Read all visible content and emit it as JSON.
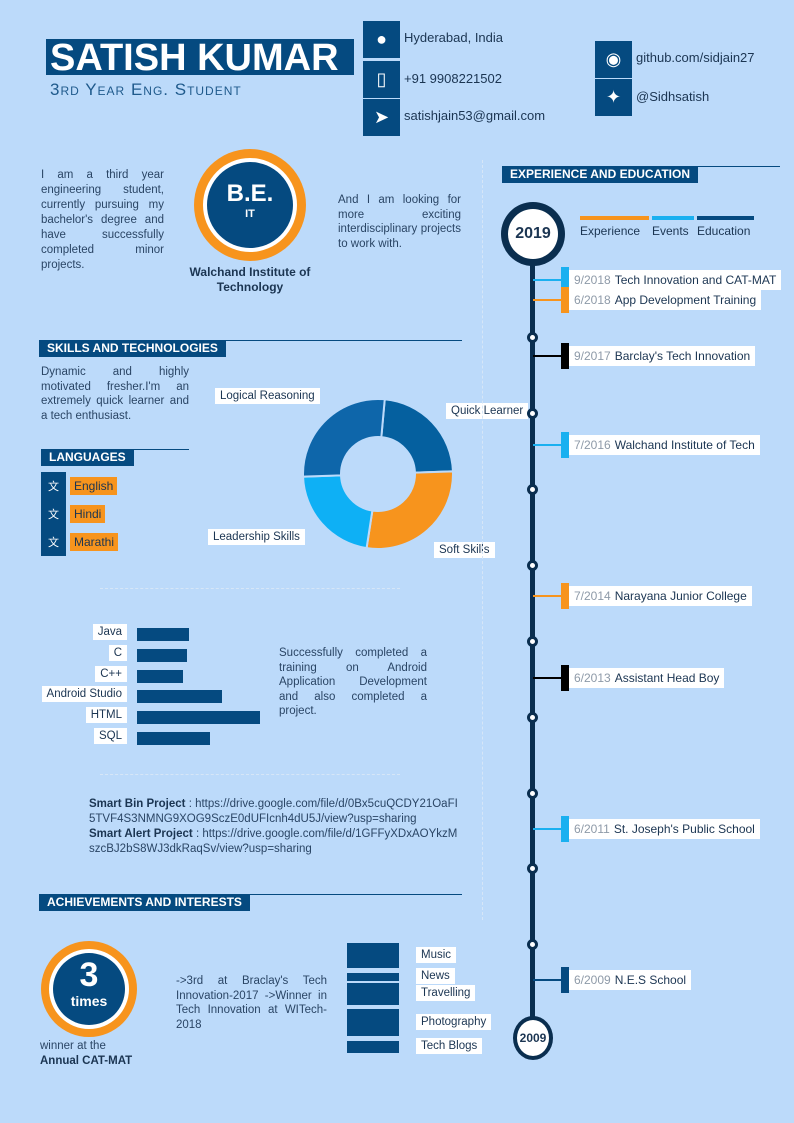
{
  "header": {
    "name": "SATISH KUMAR",
    "subtitle": "3rd Year Eng. Student"
  },
  "contact": [
    {
      "icon": "location-pin-icon",
      "text": "Hyderabad, India"
    },
    {
      "icon": "mobile-phone-icon",
      "text": "+91 9908221502"
    },
    {
      "icon": "paper-plane-icon",
      "text": "satishjain53@gmail.com"
    }
  ],
  "social": [
    {
      "icon": "github-icon",
      "text": "github.com/sidjain27"
    },
    {
      "icon": "twitter-icon",
      "text": "@Sidhsatish"
    }
  ],
  "intro": {
    "left": "I am a third year engineering student, currently pursuing my bachelor's degree and have successfully completed minor projects.",
    "right": "And I am looking for more exciting interdisciplinary projects to work with.",
    "degree": "B.E.",
    "branch": "IT",
    "college": "Walchand Institute of Technology"
  },
  "skills": {
    "title": "SKILLS AND TECHNOLOGIES",
    "summary": "Dynamic and highly motivated fresher.I'm an extremely quick learner and a tech enthusiast.",
    "training": "Successfully completed a training on Android Application Development and also completed a project."
  },
  "languages": {
    "title": "LANGUAGES",
    "items": [
      "English",
      "Hindi",
      "Marathi"
    ]
  },
  "chart_data": [
    {
      "type": "pie",
      "variant": "donut",
      "labels": [
        "Quick Learner",
        "Soft Skills",
        "Leadership Skills",
        "Logical Reasoning"
      ],
      "values": [
        23,
        28,
        22,
        27
      ],
      "colors": [
        "#05609f",
        "#f7941d",
        "#0eb0f5",
        "#0e66aa"
      ]
    },
    {
      "type": "bar",
      "orientation": "horizontal",
      "categories": [
        "Java",
        "C",
        "C++",
        "Android Studio",
        "HTML",
        "SQL"
      ],
      "values": [
        42,
        41,
        37,
        69,
        100,
        59
      ],
      "color": "#054a80"
    }
  ],
  "projects": [
    {
      "name": "Smart Bin Project",
      "link": " : https://drive.google.com/file/d/0Bx5cuQCDY21OaFI5TVF4S3NMNG9XOG9SczE0dUFIcnh4dU5J/view?usp=sharing"
    },
    {
      "name": "Smart Alert Project",
      "link": " : https://drive.google.com/file/d/1GFFyXDxAOYkzMszcBJ2bS8WJ3dkRaqSv/view?usp=sharing"
    }
  ],
  "achievements": {
    "title": "ACHIEVEMENTS AND INTERESTS",
    "count": "3",
    "unit": "times",
    "caption1": "winner at the",
    "caption2": "Annual CAT-MAT",
    "text": "->3rd at Braclay's Tech Innovation-2017 ->Winner in Tech Innovation at WITech-2018"
  },
  "interests": [
    "Music",
    "News",
    "Travelling",
    "Photography",
    "Tech Blogs"
  ],
  "timeline": {
    "title": "EXPERIENCE AND EDUCATION",
    "start": "2019",
    "end": "2009",
    "legend": [
      {
        "label": "Experience",
        "color": "#f7941d"
      },
      {
        "label": "Events",
        "color": "#1ab0f0"
      },
      {
        "label": "Education",
        "color": "#054a80"
      }
    ],
    "entries": [
      {
        "date": "9/2018",
        "text": "Tech Innovation and CAT-MAT",
        "color": "#1ab0f0"
      },
      {
        "date": "6/2018",
        "text": "App Development Training",
        "color": "#f7941d"
      },
      {
        "date": "9/2017",
        "text": "Barclay's Tech Innovation",
        "color": "#000000"
      },
      {
        "date": "7/2016",
        "text": "Walchand Institute of Tech",
        "color": "#1ab0f0"
      },
      {
        "date": "7/2014",
        "text": "Narayana Junior College",
        "color": "#f7941d"
      },
      {
        "date": "6/2013",
        "text": "Assistant Head Boy",
        "color": "#000000"
      },
      {
        "date": "6/2011",
        "text": "St. Joseph's Public School",
        "color": "#1ab0f0"
      },
      {
        "date": "6/2009",
        "text": "N.E.S School",
        "color": "#054a80"
      }
    ]
  }
}
